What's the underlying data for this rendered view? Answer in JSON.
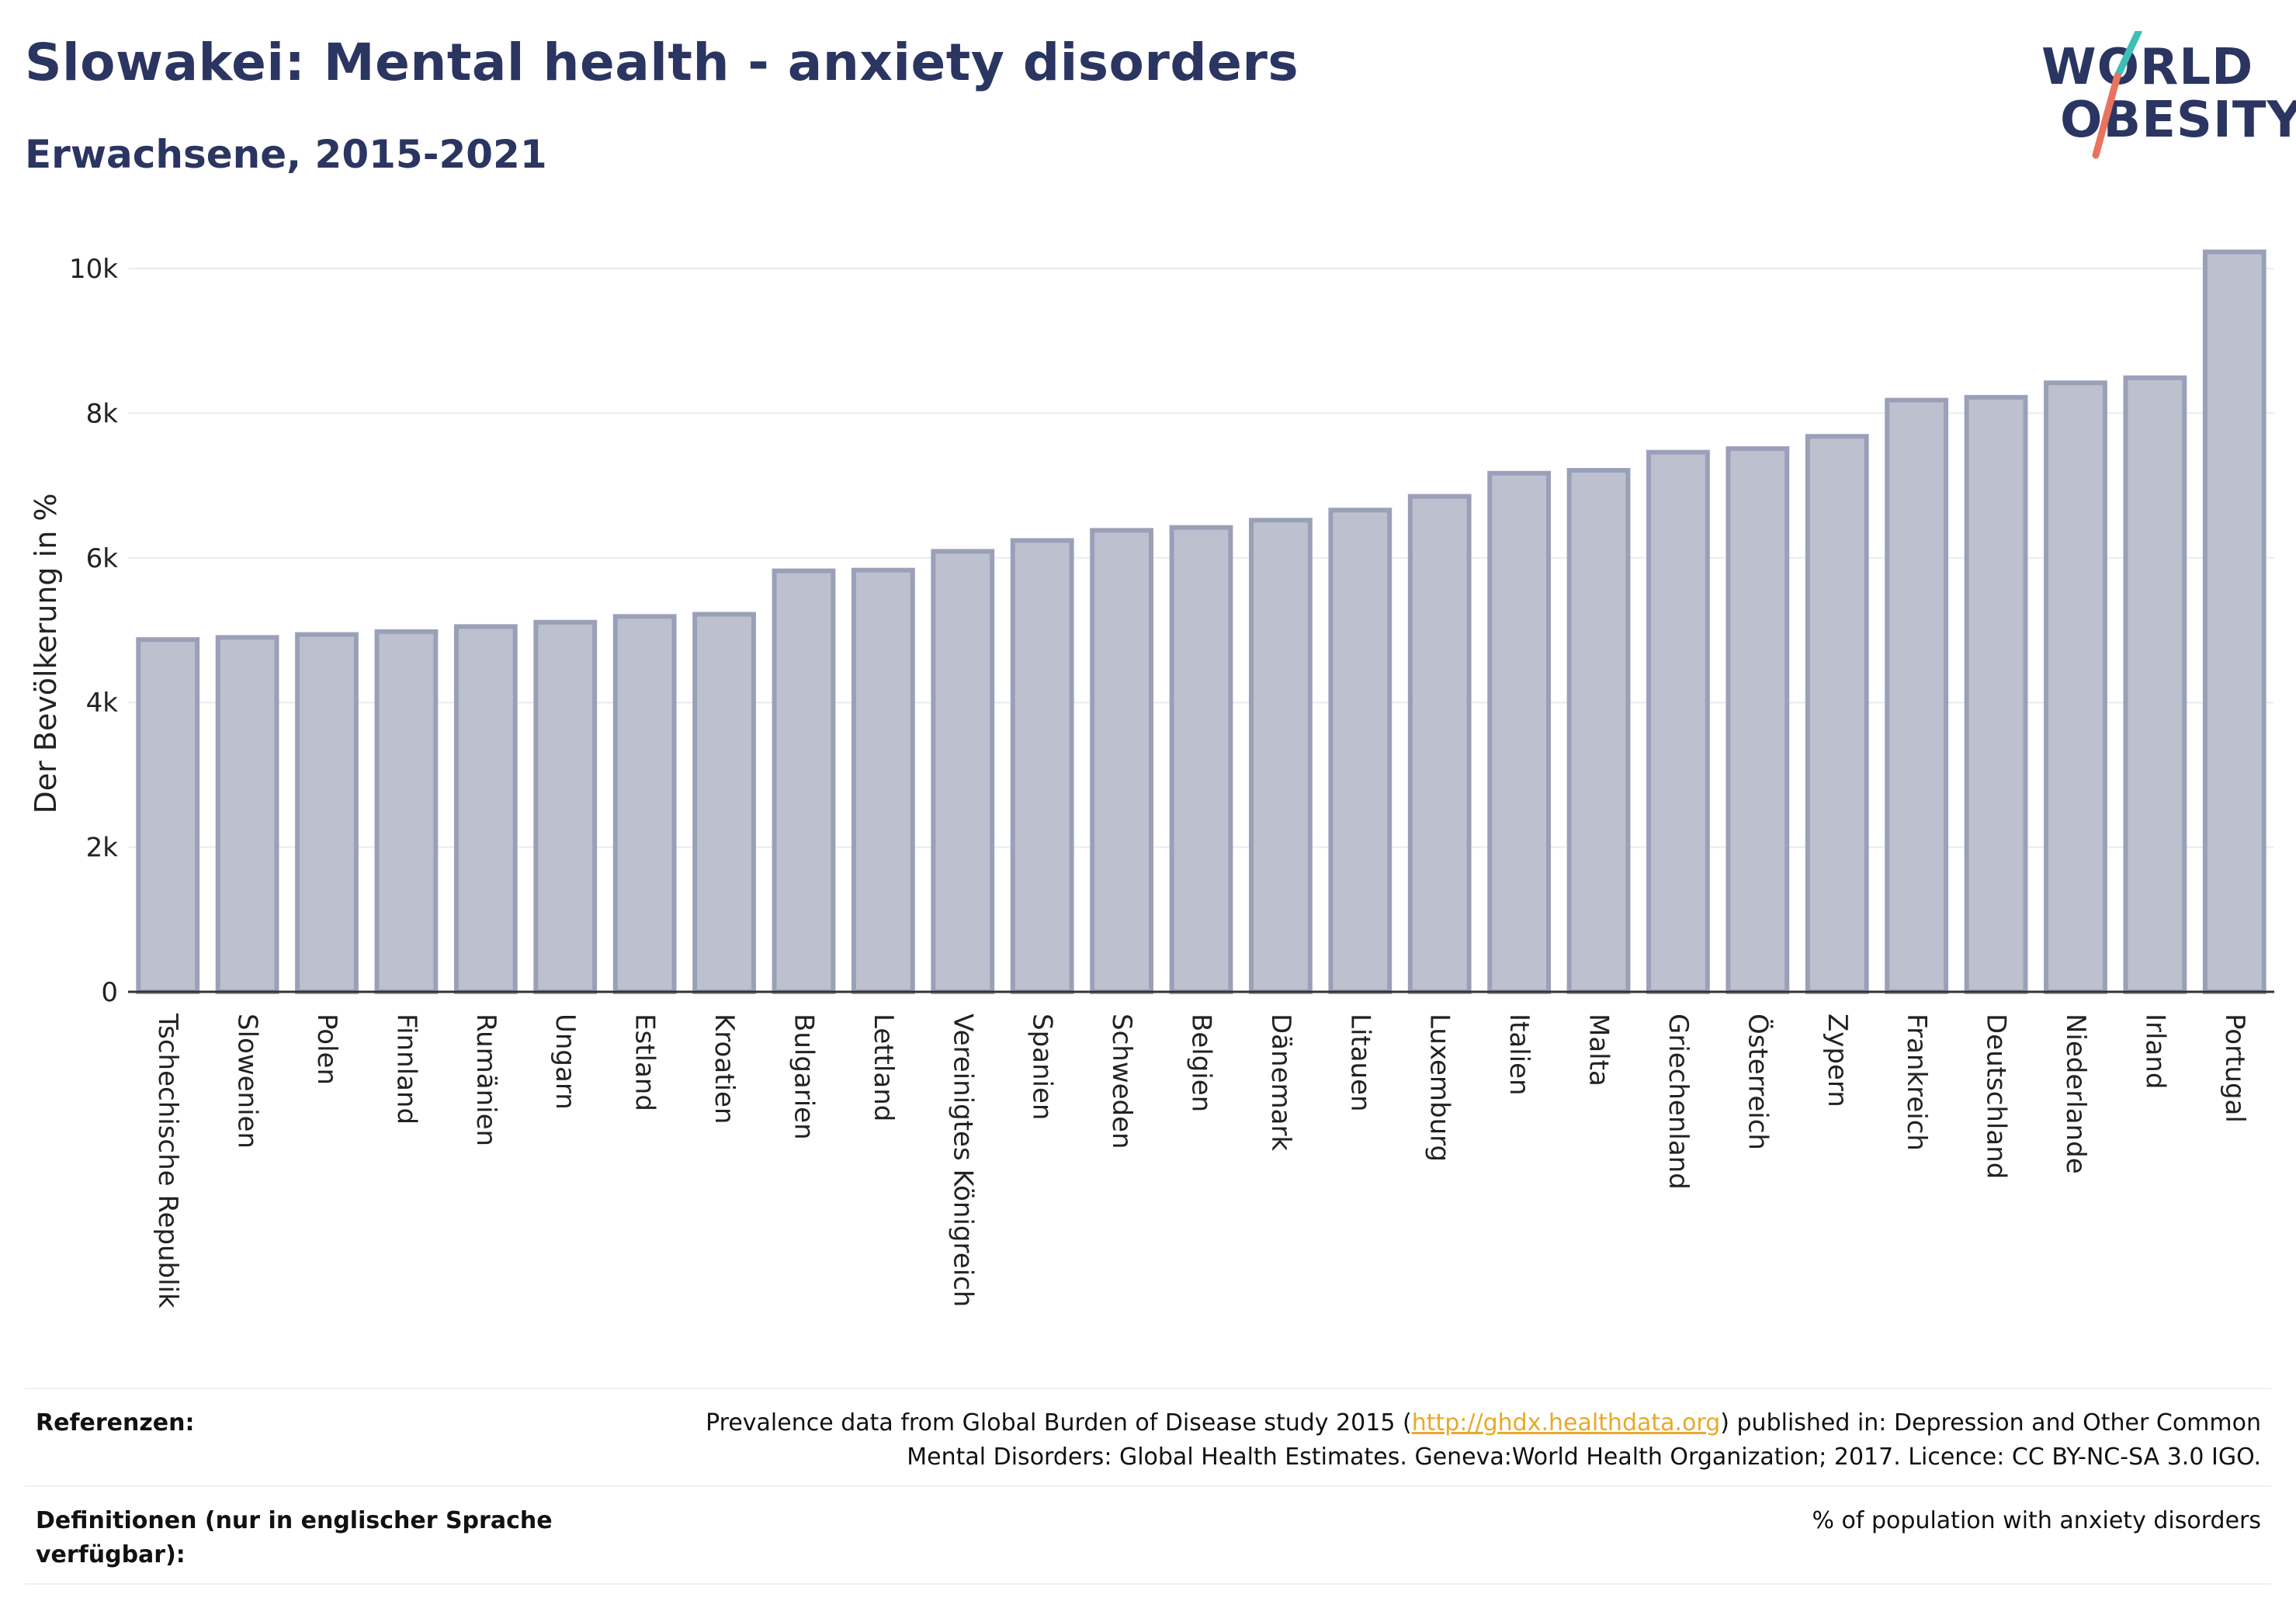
{
  "header": {
    "title": "Slowakei: Mental health - anxiety disorders",
    "subtitle": "Erwachsene, 2015-2021"
  },
  "logo": {
    "line1": "WORLD",
    "line2": "OBESITY",
    "accent_teal": "#3dbfb8",
    "accent_coral": "#e8735f"
  },
  "chart_data": {
    "type": "bar",
    "ylabel": "Der Bevölkerung in %",
    "ylim": [
      0,
      10500
    ],
    "yticks": [
      0,
      2000,
      4000,
      6000,
      8000,
      10000
    ],
    "ytick_labels": [
      "0",
      "2k",
      "4k",
      "6k",
      "8k",
      "10k"
    ],
    "grid": true,
    "categories": [
      "Tschechische Republik",
      "Slowenien",
      "Polen",
      "Finnland",
      "Rumänien",
      "Ungarn",
      "Estland",
      "Kroatien",
      "Bulgarien",
      "Lettland",
      "Vereinigtes Königreich",
      "Spanien",
      "Schweden",
      "Belgien",
      "Dänemark",
      "Litauen",
      "Luxemburg",
      "Italien",
      "Malta",
      "Griechenland",
      "Österreich",
      "Zypern",
      "Frankreich",
      "Deutschland",
      "Niederlande",
      "Irland",
      "Portugal"
    ],
    "values": [
      4870,
      4900,
      4940,
      4980,
      5050,
      5110,
      5190,
      5220,
      5820,
      5830,
      6090,
      6240,
      6380,
      6420,
      6520,
      6660,
      6850,
      7170,
      7210,
      7460,
      7510,
      7680,
      8180,
      8220,
      8420,
      8490,
      10230
    ],
    "bar_fill": "#bdc0ce",
    "bar_stroke": "#9aa0b8"
  },
  "footer": {
    "references_label": "Referenzen:",
    "references_line1_pre": "Prevalence data from Global Burden of Disease study 2015 (",
    "references_link": "http://ghdx.healthdata.org",
    "references_line1_post": ") published in: Depression and Other Common",
    "references_line2": "Mental Disorders: Global Health Estimates. Geneva:World Health Organization; 2017. Licence: CC BY-NC-SA 3.0 IGO.",
    "definitions_label_line1": "Definitionen (nur in englischer Sprache",
    "definitions_label_line2": "verfügbar):",
    "definitions_text": "% of population with anxiety disorders"
  }
}
